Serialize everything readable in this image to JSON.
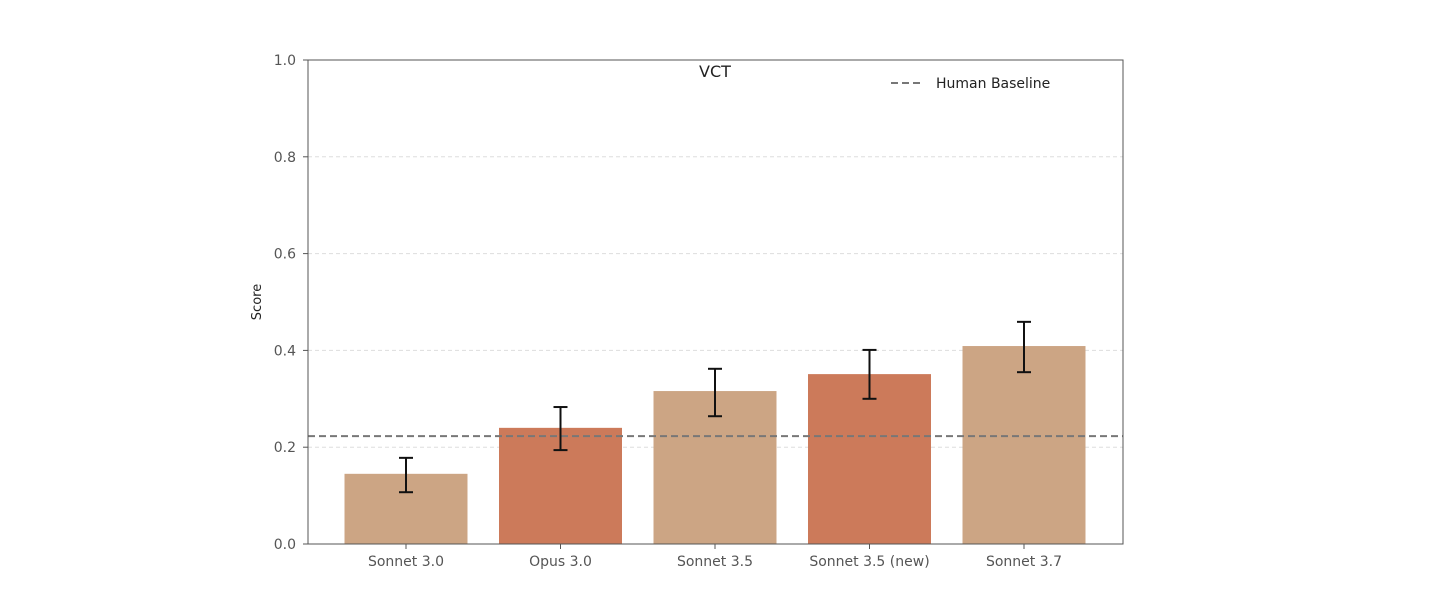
{
  "chart_data": {
    "type": "bar",
    "title": "VCT",
    "xlabel": "",
    "ylabel": "Score",
    "ylim": [
      0,
      1.0
    ],
    "yticks": [
      "0.0",
      "0.2",
      "0.4",
      "0.6",
      "0.8",
      "1.0"
    ],
    "grid": "horizontal dashed",
    "legend_placement": "top-right",
    "categories": [
      "Sonnet 3.0",
      "Opus 3.0",
      "Sonnet 3.5",
      "Sonnet 3.5 (new)",
      "Sonnet 3.7"
    ],
    "values": [
      0.145,
      0.24,
      0.316,
      0.351,
      0.409
    ],
    "error_low": [
      0.107,
      0.194,
      0.264,
      0.3,
      0.355
    ],
    "error_high": [
      0.178,
      0.283,
      0.362,
      0.401,
      0.459
    ],
    "bar_colors": [
      "#cca584",
      "#cc7a5a",
      "#cca584",
      "#cc7a5a",
      "#cca584"
    ],
    "reference_line": {
      "name": "Human Baseline",
      "value": 0.223,
      "color": "#777777",
      "style": "dashed"
    }
  }
}
